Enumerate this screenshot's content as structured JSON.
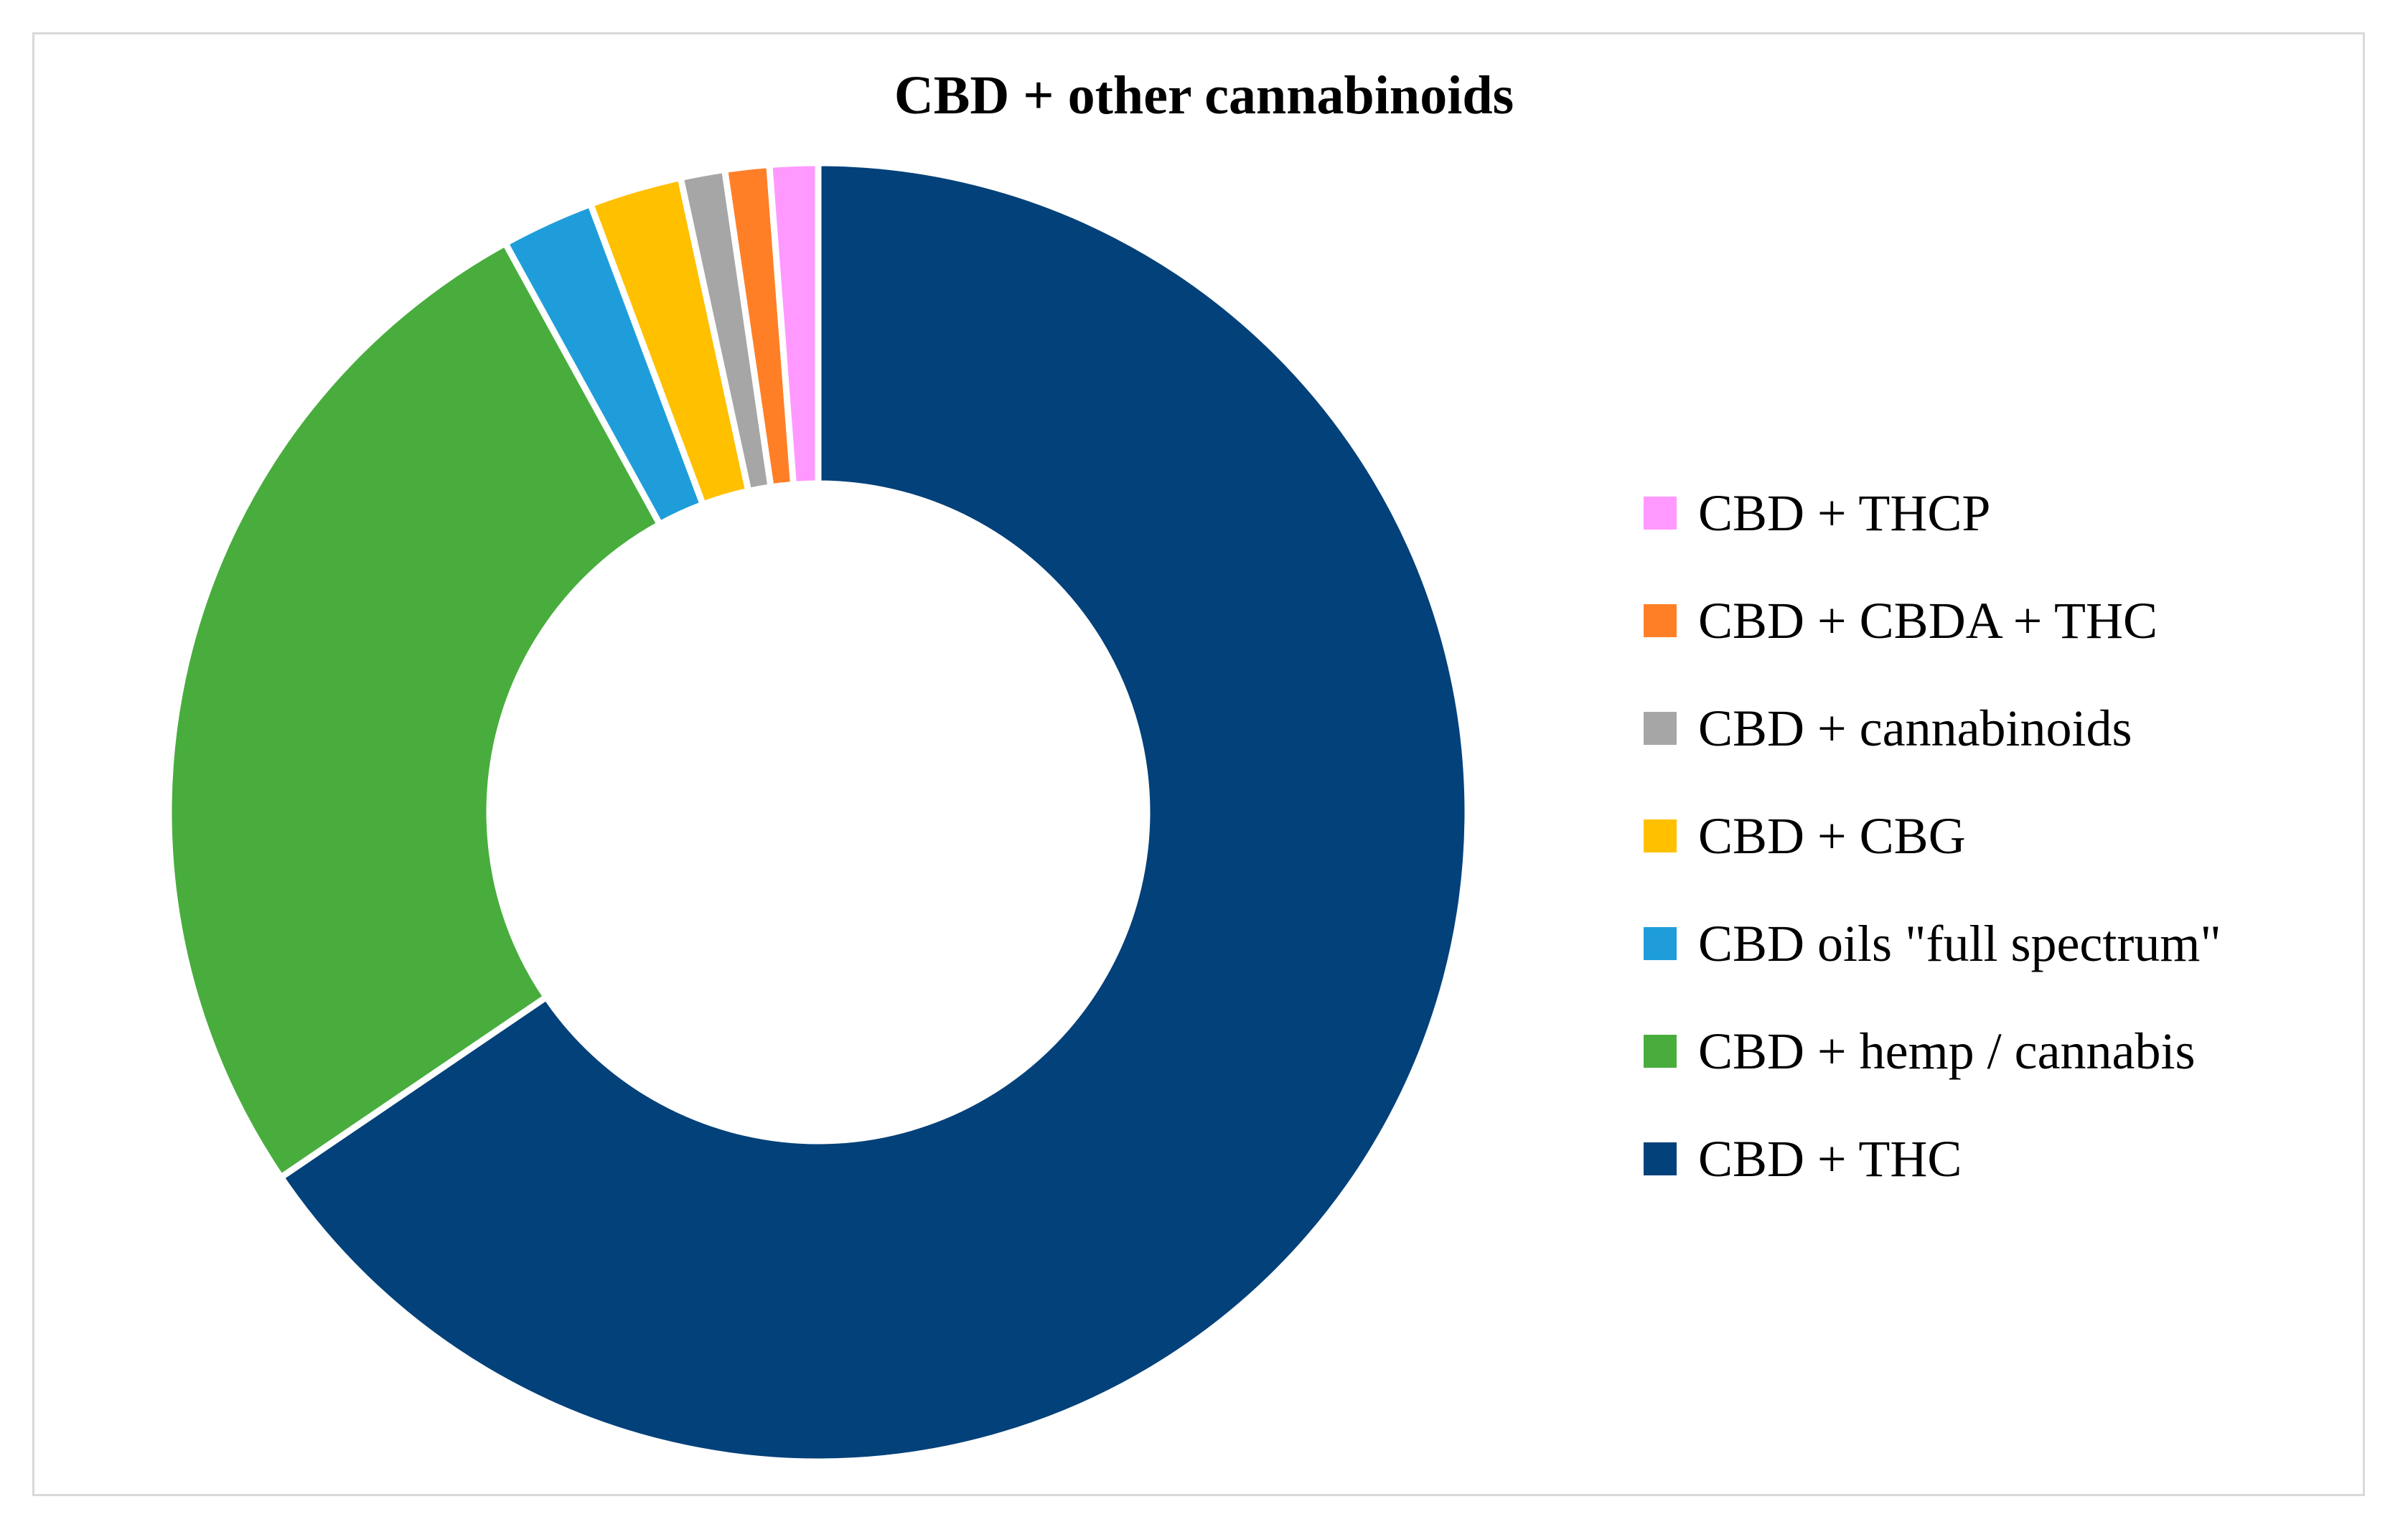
{
  "chart_data": {
    "type": "pie",
    "style": "donut",
    "title": "CBD + other cannabinoids",
    "legend_position": "right",
    "slices": [
      {
        "label": "CBD + THC",
        "value": 65.5,
        "color": "#02417A"
      },
      {
        "label": "CBD + hemp / cannabis",
        "value": 26.5,
        "color": "#48AD3D"
      },
      {
        "label": "CBD oils \"full spectrum\"",
        "value": 2.3,
        "color": "#1F9DDB"
      },
      {
        "label": "CBD + CBG",
        "value": 2.3,
        "color": "#FFC000"
      },
      {
        "label": "CBD + cannabinoids",
        "value": 1.1,
        "color": "#A6A6A6"
      },
      {
        "label": "CBD + CBDA + THC",
        "value": 1.1,
        "color": "#FF7F27"
      },
      {
        "label": "CBD + THCP",
        "value": 1.2,
        "color": "#FF99FF"
      }
    ],
    "legend_order": [
      "CBD + THCP",
      "CBD + CBDA + THC",
      "CBD + cannabinoids",
      "CBD + CBG",
      "CBD oils \"full spectrum\"",
      "CBD + hemp / cannabis",
      "CBD + THC"
    ]
  }
}
